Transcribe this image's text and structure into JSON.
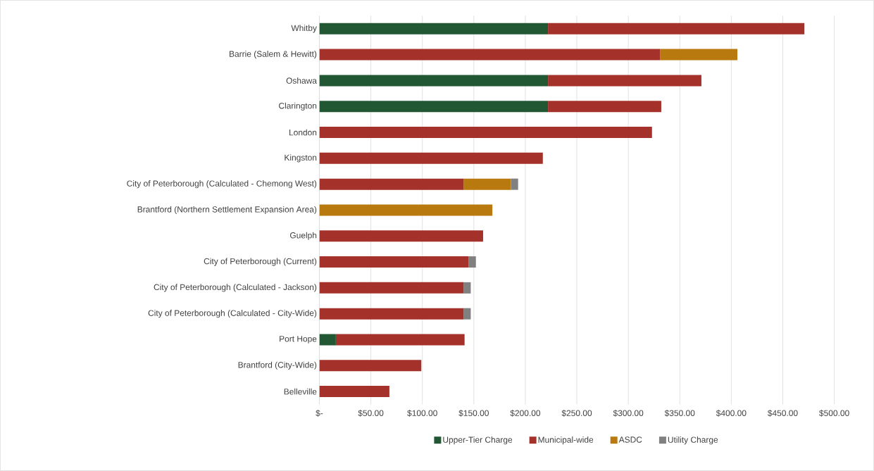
{
  "chart_data": {
    "type": "bar",
    "orientation": "horizontal",
    "stacked": true,
    "categories": [
      "Whitby",
      "Barrie (Salem & Hewitt)",
      "Oshawa",
      "Clarington",
      "London",
      "Kingston",
      "City of Peterborough (Calculated - Chemong West)",
      "Brantford (Northern Settlement Expansion Area)",
      "Guelph",
      "City of Peterborough (Current)",
      "City of Peterborough (Calculated - Jackson)",
      "City of Peterborough (Calculated - City-Wide)",
      "Port Hope",
      "Brantford (City-Wide)",
      "Belleville"
    ],
    "series": [
      {
        "name": "Upper-Tier Charge",
        "color": "#215732",
        "values": [
          222,
          null,
          222,
          222,
          null,
          null,
          null,
          null,
          null,
          null,
          null,
          null,
          16,
          null,
          null
        ]
      },
      {
        "name": "Municipal-wide",
        "color": "#a5322a",
        "values": [
          249,
          331,
          149,
          110,
          323,
          217,
          140,
          null,
          159,
          145,
          140,
          140,
          125,
          99,
          68
        ]
      },
      {
        "name": "ASDC",
        "color": "#b8790e",
        "values": [
          null,
          75,
          null,
          null,
          null,
          null,
          46,
          168,
          null,
          null,
          null,
          null,
          null,
          null,
          null
        ]
      },
      {
        "name": "Utility Charge",
        "color": "#808080",
        "values": [
          null,
          null,
          null,
          null,
          null,
          null,
          7,
          null,
          null,
          7,
          7,
          7,
          null,
          null,
          null
        ]
      }
    ],
    "xlim": [
      0,
      500
    ],
    "xticks": [
      {
        "value": 0,
        "label": "$-"
      },
      {
        "value": 50,
        "label": "$50.00"
      },
      {
        "value": 100,
        "label": "$100.00"
      },
      {
        "value": 150,
        "label": "$150.00"
      },
      {
        "value": 200,
        "label": "$200.00"
      },
      {
        "value": 250,
        "label": "$250.00"
      },
      {
        "value": 300,
        "label": "$300.00"
      },
      {
        "value": 350,
        "label": "$350.00"
      },
      {
        "value": 400,
        "label": "$400.00"
      },
      {
        "value": 450,
        "label": "$450.00"
      },
      {
        "value": 500,
        "label": "$500.00"
      }
    ],
    "grid": "x",
    "legend": "bottom"
  }
}
